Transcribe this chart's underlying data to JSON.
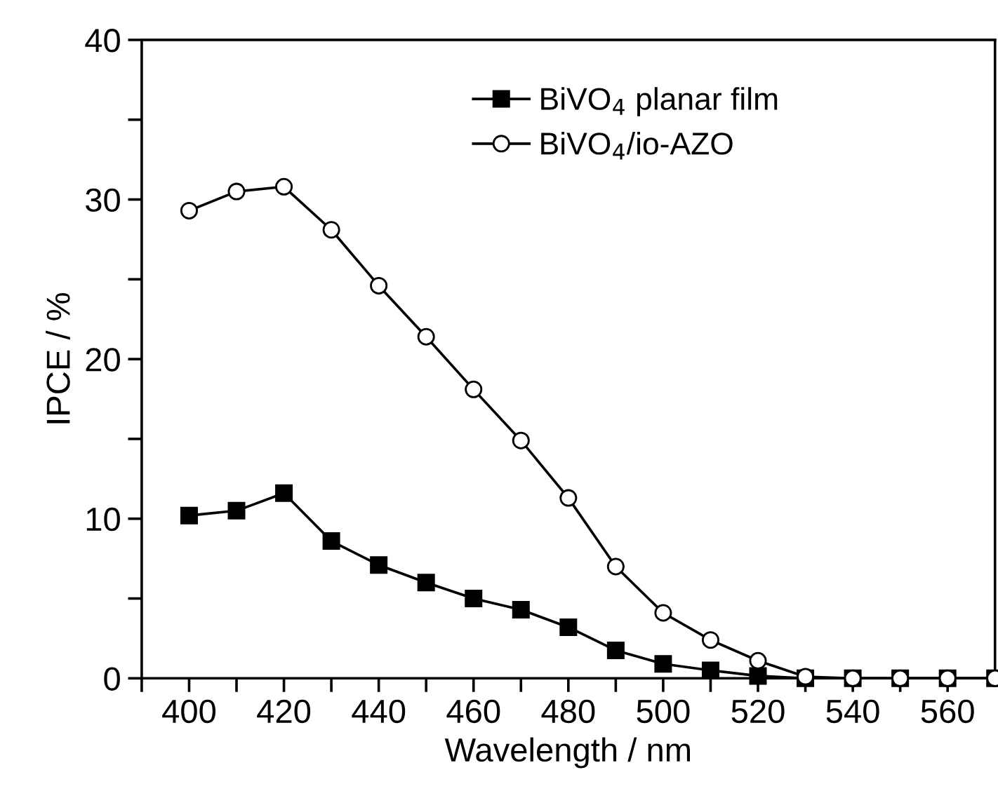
{
  "chart_data": {
    "type": "line",
    "xlabel": "Wavelength / nm",
    "ylabel": "IPCE / %",
    "x": [
      400,
      410,
      420,
      430,
      440,
      450,
      460,
      470,
      480,
      490,
      500,
      510,
      520,
      530,
      540,
      550,
      560,
      570
    ],
    "series": [
      {
        "name": "BiVO$_{4}$ planar film",
        "color": "#000000",
        "marker": "square",
        "values": [
          10.2,
          10.5,
          11.6,
          8.6,
          7.1,
          6.0,
          5.0,
          4.3,
          3.2,
          1.75,
          0.9,
          0.5,
          0.15,
          0,
          0,
          0,
          0,
          0
        ]
      },
      {
        "name": "BiVO$_{4}$/io-AZO",
        "color": "#000000",
        "marker": "circle",
        "values": [
          29.3,
          30.5,
          30.8,
          28.1,
          24.6,
          21.4,
          18.1,
          14.9,
          11.3,
          7.0,
          4.1,
          2.4,
          1.1,
          0.1,
          0,
          0,
          0,
          0
        ]
      }
    ],
    "xlim": [
      390,
      570
    ],
    "xticks": [
      {
        "value": 390,
        "label": null
      },
      400,
      {
        "value": 410,
        "label": null
      },
      420,
      {
        "value": 430,
        "label": null
      },
      440,
      {
        "value": 450,
        "label": null
      },
      460,
      {
        "value": 470,
        "label": null
      },
      480,
      {
        "value": 490,
        "label": null
      },
      500,
      {
        "value": 510,
        "label": null
      },
      520,
      {
        "value": 530,
        "label": null
      },
      540,
      {
        "value": 550,
        "label": null
      },
      560
    ],
    "ylim": [
      0,
      40
    ],
    "yticks": [
      0,
      {
        "value": 5,
        "label": null
      },
      10,
      {
        "value": 15,
        "label": null
      },
      20,
      {
        "value": 25,
        "label": null
      },
      30,
      {
        "value": 35,
        "label": null
      },
      40
    ],
    "grid": false,
    "legend": "top right",
    "line_style": "solid"
  }
}
